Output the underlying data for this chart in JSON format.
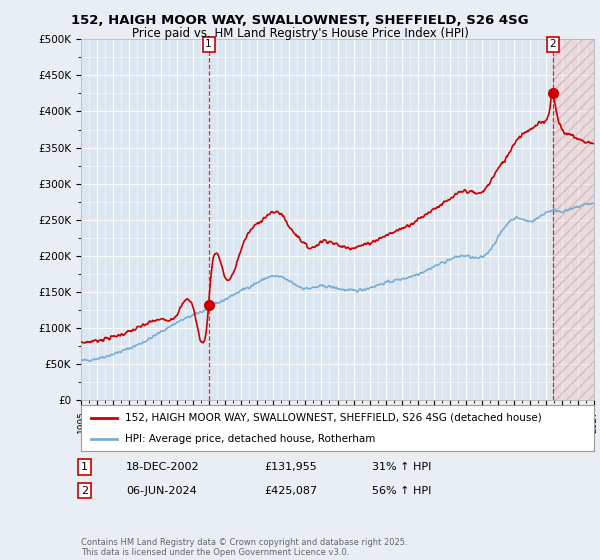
{
  "title_line1": "152, HAIGH MOOR WAY, SWALLOWNEST, SHEFFIELD, S26 4SG",
  "title_line2": "Price paid vs. HM Land Registry's House Price Index (HPI)",
  "ytick_labels": [
    "£0",
    "£50K",
    "£100K",
    "£150K",
    "£200K",
    "£250K",
    "£300K",
    "£350K",
    "£400K",
    "£450K",
    "£500K"
  ],
  "yticks": [
    0,
    50000,
    100000,
    150000,
    200000,
    250000,
    300000,
    350000,
    400000,
    450000,
    500000
  ],
  "ylim": [
    0,
    500000
  ],
  "xlim": [
    1995,
    2027
  ],
  "legend_line1": "152, HAIGH MOOR WAY, SWALLOWNEST, SHEFFIELD, S26 4SG (detached house)",
  "legend_line2": "HPI: Average price, detached house, Rotherham",
  "ann1_label": "1",
  "ann1_date": "18-DEC-2002",
  "ann1_price": "£131,955",
  "ann1_pct": "31% ↑ HPI",
  "ann2_label": "2",
  "ann2_date": "06-JUN-2024",
  "ann2_price": "£425,087",
  "ann2_pct": "56% ↑ HPI",
  "price_color": "#cc0000",
  "hpi_color": "#7aadd4",
  "bg_color": "#e8eef4",
  "plot_bg": "#dce6f0",
  "grid_color": "#ffffff",
  "footer": "Contains HM Land Registry data © Crown copyright and database right 2025.\nThis data is licensed under the Open Government Licence v3.0.",
  "sale1_price": 131955,
  "sale1_year": 2002.96,
  "sale2_price": 425087,
  "sale2_year": 2024.43
}
